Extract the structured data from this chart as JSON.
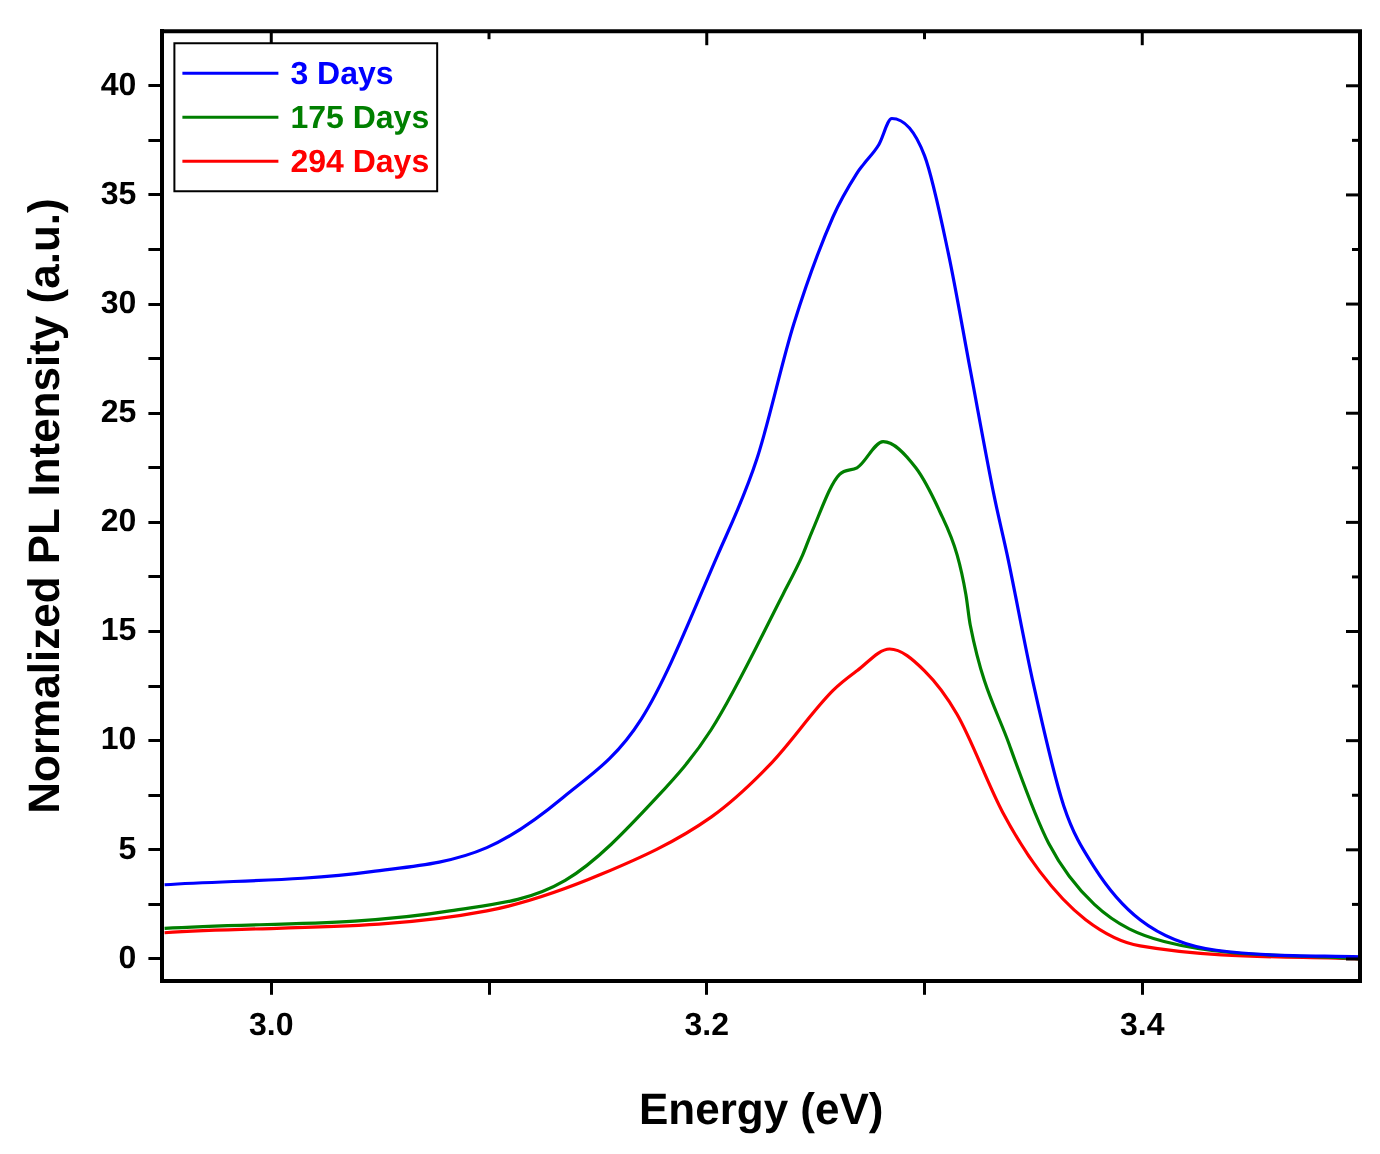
{
  "chart_data": {
    "type": "line",
    "xlabel": "Energy (eV)",
    "ylabel": "Normalized PL Intensity (a.u.)",
    "xlim": [
      2.95,
      3.5
    ],
    "ylim": [
      -1,
      42.5
    ],
    "xticks": [
      {
        "value": 3.0,
        "label": "3.0"
      },
      {
        "value": 3.1,
        "label": null
      },
      {
        "value": 3.2,
        "label": "3.2"
      },
      {
        "value": 3.3,
        "label": null
      },
      {
        "value": 3.4,
        "label": "3.4"
      }
    ],
    "yticks": [
      0,
      {
        "value": 2.5,
        "label": null
      },
      5,
      {
        "value": 7.5,
        "label": null
      },
      10,
      {
        "value": 12.5,
        "label": null
      },
      15,
      {
        "value": 17.5,
        "label": null
      },
      20,
      {
        "value": 22.5,
        "label": null
      },
      25,
      {
        "value": 27.5,
        "label": null
      },
      30,
      {
        "value": 32.5,
        "label": null
      },
      35,
      {
        "value": 37.5,
        "label": null
      },
      40
    ],
    "grid": false,
    "legend": "top left",
    "marker": "none",
    "line_style": "solid",
    "series": [
      {
        "name": "3 Days",
        "color": "#0000ff",
        "x": [
          2.951,
          3.046,
          3.099,
          3.134,
          3.17,
          3.205,
          3.223,
          3.24,
          3.258,
          3.269,
          3.272,
          3.279,
          3.285,
          3.3,
          3.311,
          3.321,
          3.332,
          3.338,
          3.35,
          3.364,
          3.378,
          3.399,
          3.434,
          3.5
        ],
        "values": [
          3.4,
          4.0,
          5.1,
          7.4,
          11.0,
          18.5,
          22.9,
          29.1,
          34.0,
          36.0,
          36.4,
          37.3,
          38.5,
          36.8,
          32.3,
          27.0,
          21.2,
          18.5,
          12.6,
          7.0,
          4.2,
          1.8,
          0.4,
          0.1
        ]
      },
      {
        "name": "175 Days",
        "color": "#007f00",
        "x": [
          2.951,
          3.082,
          3.135,
          3.177,
          3.202,
          3.235,
          3.244,
          3.248,
          3.261,
          3.269,
          3.281,
          3.296,
          3.307,
          3.315,
          3.319,
          3.321,
          3.339,
          3.357,
          3.378,
          3.41,
          3.5
        ],
        "values": [
          1.4,
          2.2,
          3.6,
          7.4,
          10.5,
          16.7,
          18.5,
          19.5,
          22.2,
          22.5,
          23.7,
          22.5,
          20.5,
          18.5,
          16.7,
          15.3,
          9.8,
          5.3,
          2.5,
          0.8,
          0
        ]
      },
      {
        "name": "294 Days",
        "color": "#ff0000",
        "x": [
          2.951,
          3.099,
          3.152,
          3.202,
          3.229,
          3.258,
          3.269,
          3.284,
          3.3,
          3.315,
          3.336,
          3.353,
          3.374,
          3.399,
          3.5
        ],
        "values": [
          1.2,
          2.2,
          3.9,
          6.5,
          8.9,
          12.3,
          13.2,
          14.2,
          13.2,
          11.2,
          6.7,
          4.0,
          1.8,
          0.6,
          0
        ]
      }
    ]
  }
}
